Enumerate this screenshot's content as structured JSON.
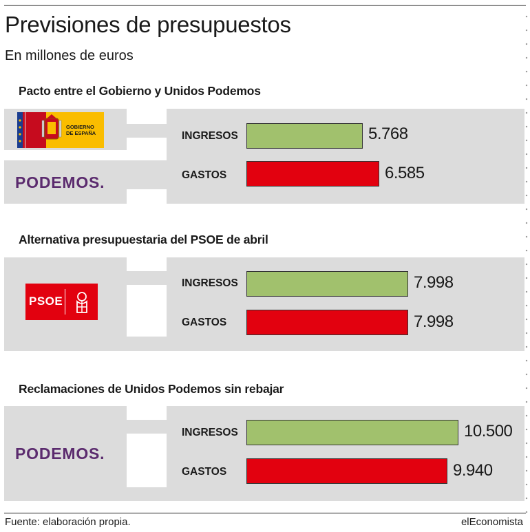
{
  "title": "Previsiones de presupuestos",
  "subtitle": "En millones de euros",
  "row_labels": {
    "ingresos": "INGRESOS",
    "gastos": "GASTOS"
  },
  "logos": {
    "gobierno": {
      "line1": "GOBIERNO",
      "line2": "DE ESPAÑA"
    },
    "podemos": "PODEMOS.",
    "psoe": "PSOE"
  },
  "colors": {
    "ingresos": "#a1c16d",
    "gastos": "#e2010f",
    "podemos": "#5b2b6e",
    "panel": "#dcdcdc"
  },
  "footer": {
    "source": "Fuente: elaboración propia.",
    "brand": "elEconomista"
  },
  "chart_data": {
    "type": "bar",
    "orientation": "horizontal",
    "categories": [
      "INGRESOS",
      "GASTOS"
    ],
    "groups": [
      {
        "title": "Pacto entre el Gobierno y Unidos Podemos",
        "values": [
          5768,
          6585
        ],
        "labels": [
          "5.768",
          "6.585"
        ]
      },
      {
        "title": "Alternativa presupuestaria del PSOE de abril",
        "values": [
          7998,
          7998
        ],
        "labels": [
          "7.998",
          "7.998"
        ]
      },
      {
        "title": "Reclamaciones de Unidos Podemos sin rebajar",
        "values": [
          10500,
          9940
        ],
        "labels": [
          "10.500",
          "9.940"
        ]
      }
    ]
  }
}
